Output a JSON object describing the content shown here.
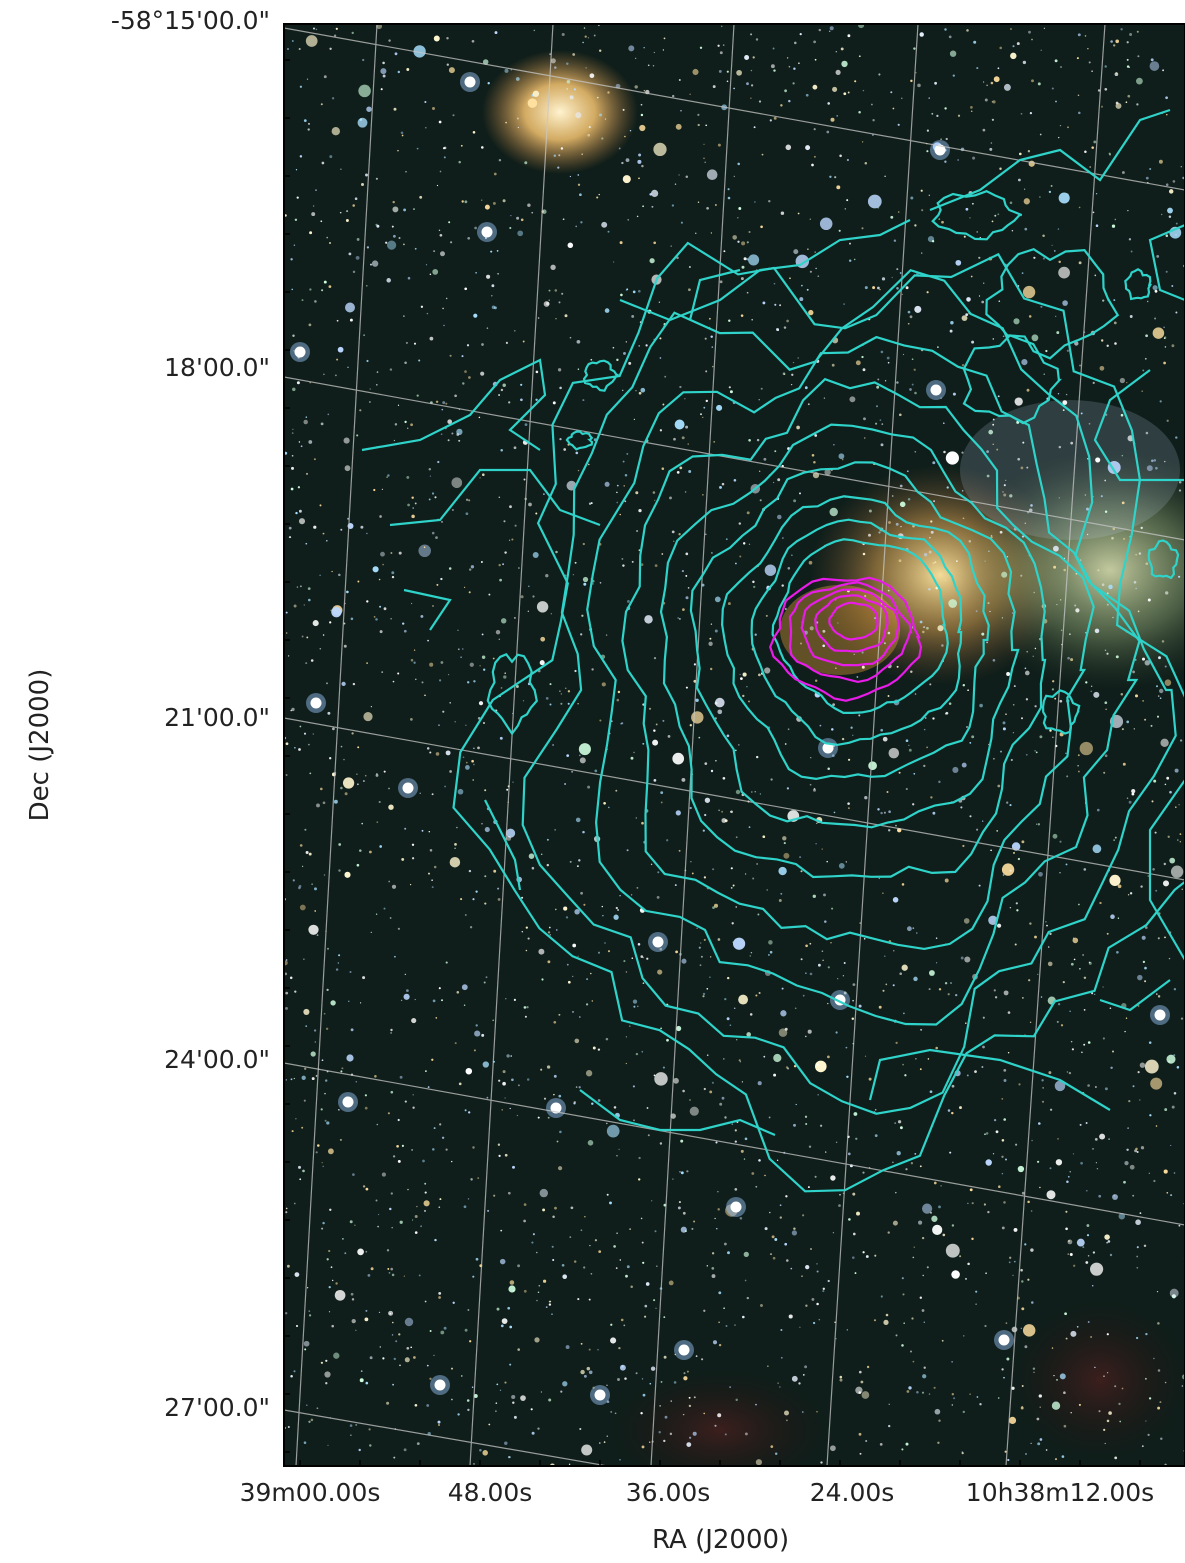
{
  "figure": {
    "ylabel": "Dec (J2000)",
    "xlabel": "RA (J2000)",
    "dec_ticks": [
      "-58°15'00.0\"",
      "18'00.0\"",
      "21'00.0\"",
      "24'00.0\"",
      "27'00.0\""
    ],
    "ra_ticks": [
      "39m00.00s",
      "48.00s",
      "36.00s",
      "24.00s",
      "10h38m12.00s"
    ],
    "contour_colors": {
      "outer": "#2fd3c9",
      "inner": "#e81ce8"
    },
    "background": "#0c1816"
  }
}
